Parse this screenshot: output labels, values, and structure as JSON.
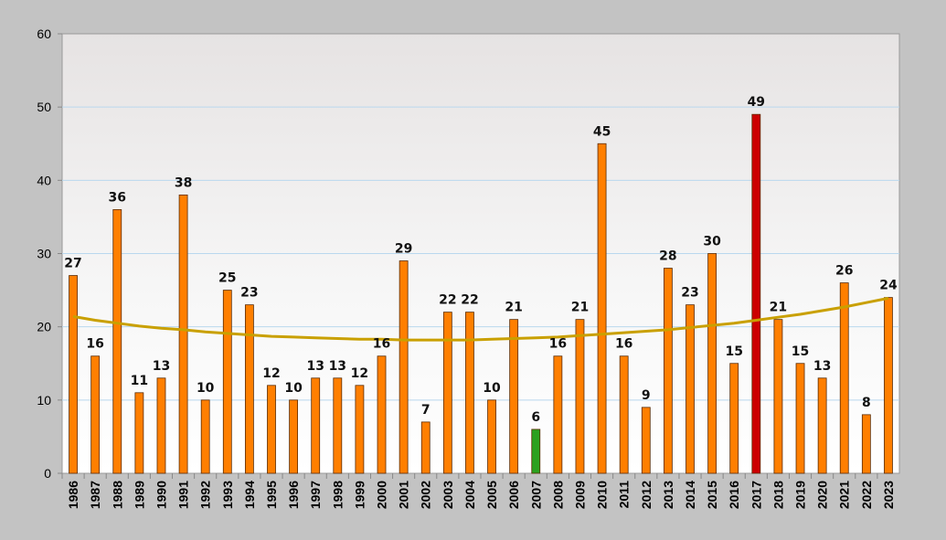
{
  "chart_data": {
    "type": "bar",
    "title": "",
    "xlabel": "",
    "ylabel": "",
    "ylim": [
      0,
      60
    ],
    "yticks": [
      0,
      10,
      20,
      30,
      40,
      50,
      60
    ],
    "grid": true,
    "legend": "none",
    "categories": [
      "1986",
      "1987",
      "1988",
      "1989",
      "1990",
      "1991",
      "1992",
      "1993",
      "1994",
      "1995",
      "1996",
      "1997",
      "1998",
      "1999",
      "2000",
      "2001",
      "2002",
      "2003",
      "2004",
      "2005",
      "2006",
      "2007",
      "2008",
      "2009",
      "2010",
      "2011",
      "2012",
      "2013",
      "2014",
      "2015",
      "2016",
      "2017",
      "2018",
      "2019",
      "2020",
      "2021",
      "2022",
      "2023"
    ],
    "values": [
      27,
      16,
      36,
      11,
      13,
      38,
      10,
      25,
      23,
      12,
      10,
      13,
      13,
      12,
      16,
      29,
      7,
      22,
      22,
      10,
      21,
      6,
      16,
      21,
      45,
      16,
      9,
      28,
      23,
      30,
      15,
      49,
      21,
      15,
      13,
      26,
      8,
      24
    ],
    "data_labels": [
      "27",
      "16",
      "36",
      "11",
      "13",
      "38",
      "10",
      "25",
      "23",
      "12",
      "10",
      "13",
      "13",
      "12",
      "16",
      "29",
      "7",
      "22",
      "22",
      "10",
      "21",
      "6",
      "16",
      "21",
      "45",
      "16",
      "9",
      "28",
      "23",
      "30",
      "15",
      "49",
      "21",
      "15",
      "13",
      "26",
      "8",
      "24"
    ],
    "highlights": {
      "2007": "min",
      "2017": "max"
    },
    "trendline": {
      "type": "polynomial",
      "values": [
        21.4,
        20.9,
        20.5,
        20.1,
        19.8,
        19.6,
        19.3,
        19.1,
        18.9,
        18.7,
        18.6,
        18.5,
        18.4,
        18.3,
        18.3,
        18.2,
        18.2,
        18.2,
        18.2,
        18.3,
        18.4,
        18.5,
        18.6,
        18.8,
        19.0,
        19.2,
        19.4,
        19.6,
        19.9,
        20.2,
        20.5,
        20.9,
        21.3,
        21.7,
        22.2,
        22.7,
        23.3,
        23.9
      ]
    },
    "colors": {
      "bar": "#ff7f00",
      "bar_min": "#2ba11f",
      "bar_max": "#cc0000",
      "trend": "#c9a000",
      "gridline": "#b9d8ee",
      "axis": "#888888"
    }
  }
}
